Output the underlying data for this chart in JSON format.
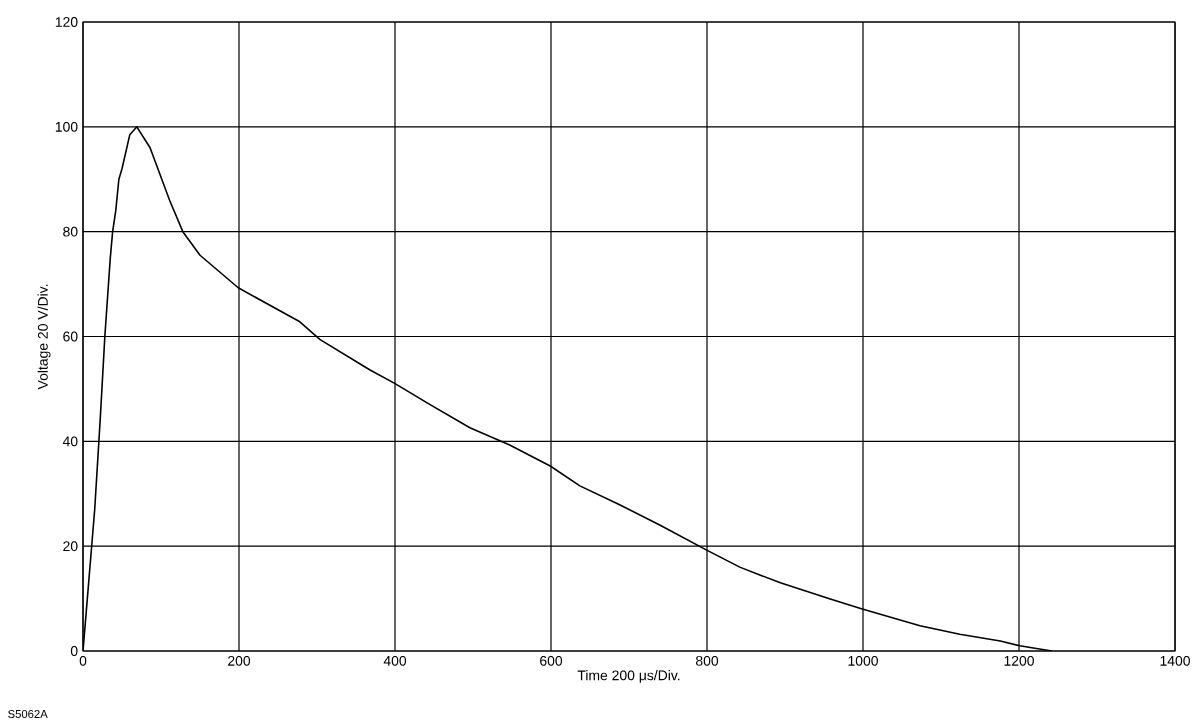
{
  "chart_data": {
    "type": "line",
    "xlabel": "Time  200 μs/Div.",
    "ylabel": "Voltage  20 V/Div.",
    "annotations": [
      "S5062A"
    ],
    "x": [
      0,
      15,
      22,
      28,
      35,
      38,
      42,
      46,
      50,
      60,
      69,
      86,
      111,
      128,
      150,
      199,
      278,
      304,
      368,
      399,
      445,
      496,
      547,
      599,
      637,
      688,
      740,
      799,
      842,
      894,
      958,
      999,
      1073,
      1124,
      1176,
      1201,
      1242
    ],
    "series": [
      {
        "color": "#000000",
        "values": [
          0,
          27,
          44,
          60,
          75,
          80,
          84,
          90,
          92,
          98.5,
          100,
          96,
          86,
          80,
          75.5,
          69.3,
          62.8,
          59.4,
          53.6,
          51.1,
          47,
          42.6,
          39.3,
          35.3,
          31.5,
          27.9,
          24,
          19.3,
          16,
          13,
          9.9,
          8,
          4.8,
          3.2,
          1.9,
          1,
          0
        ]
      }
    ],
    "xlim": [
      0,
      1400
    ],
    "ylim": [
      0,
      120
    ],
    "xticks": [
      0,
      200,
      400,
      600,
      800,
      1000,
      1200,
      1400
    ],
    "yticks": [
      0,
      20,
      40,
      60,
      80,
      100,
      120
    ],
    "grid": true,
    "marker": "none",
    "line_style": "solid"
  }
}
